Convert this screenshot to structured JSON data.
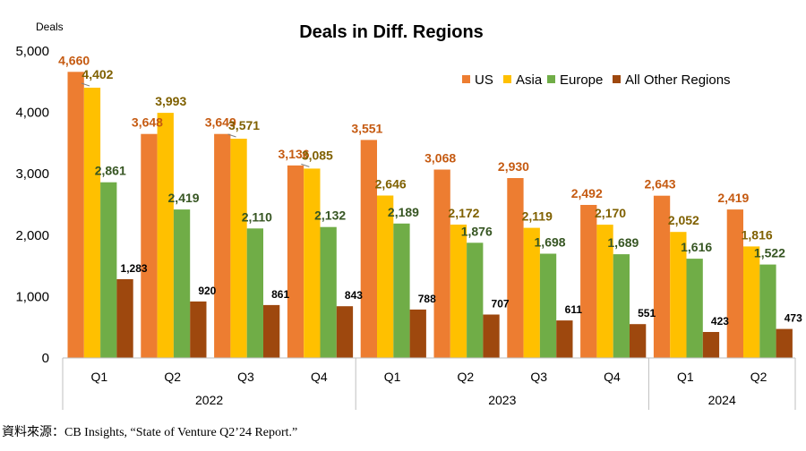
{
  "chart_data": {
    "type": "bar",
    "title": "Deals in Diff. Regions",
    "ylabel": "Deals",
    "xlabel": "",
    "ylim": [
      0,
      5000
    ],
    "yticks": [
      "0",
      "1,000",
      "2,000",
      "3,000",
      "4,000",
      "5,000"
    ],
    "grid": false,
    "legend_position": "top-right",
    "categories": [
      "Q1",
      "Q2",
      "Q3",
      "Q4",
      "Q1",
      "Q2",
      "Q3",
      "Q4",
      "Q1",
      "Q2"
    ],
    "groups": [
      {
        "label": "2022",
        "count": 4
      },
      {
        "label": "2023",
        "count": 4
      },
      {
        "label": "2024",
        "count": 2
      }
    ],
    "series": [
      {
        "name": "US",
        "color": "#ED7D31",
        "label_color": "#C55A11",
        "values": [
          4660,
          3648,
          3649,
          3136,
          3551,
          3068,
          2930,
          2492,
          2643,
          2419
        ],
        "labels": [
          "4,660",
          "3,648",
          "3,649",
          "3,136",
          "3,551",
          "3,068",
          "2,930",
          "2,492",
          "2,643",
          "2,419"
        ]
      },
      {
        "name": "Asia",
        "color": "#FFC000",
        "label_color": "#7F6000",
        "values": [
          4402,
          3993,
          3571,
          3085,
          2646,
          2172,
          2119,
          2170,
          2052,
          1816
        ],
        "labels": [
          "4,402",
          "3,993",
          "3,571",
          "3,085",
          "2,646",
          "2,172",
          "2,119",
          "2,170",
          "2,052",
          "1,816"
        ]
      },
      {
        "name": "Europe",
        "color": "#70AD47",
        "label_color": "#375623",
        "values": [
          2861,
          2419,
          2110,
          2132,
          2189,
          1876,
          1698,
          1689,
          1616,
          1522
        ],
        "labels": [
          "2,861",
          "2,419",
          "2,110",
          "2,132",
          "2,189",
          "1,876",
          "1,698",
          "1,689",
          "1,616",
          "1,522"
        ]
      },
      {
        "name": "All Other Regions",
        "color": "#9E480E",
        "label_color": "#000000",
        "values": [
          1283,
          920,
          861,
          843,
          788,
          707,
          611,
          551,
          423,
          473
        ],
        "labels": [
          "1,283",
          "920",
          "861",
          "843",
          "788",
          "707",
          "611",
          "551",
          "423",
          "473"
        ]
      }
    ]
  },
  "source": "資料來源：CB Insights, “State of Venture Q2’24 Report.”"
}
